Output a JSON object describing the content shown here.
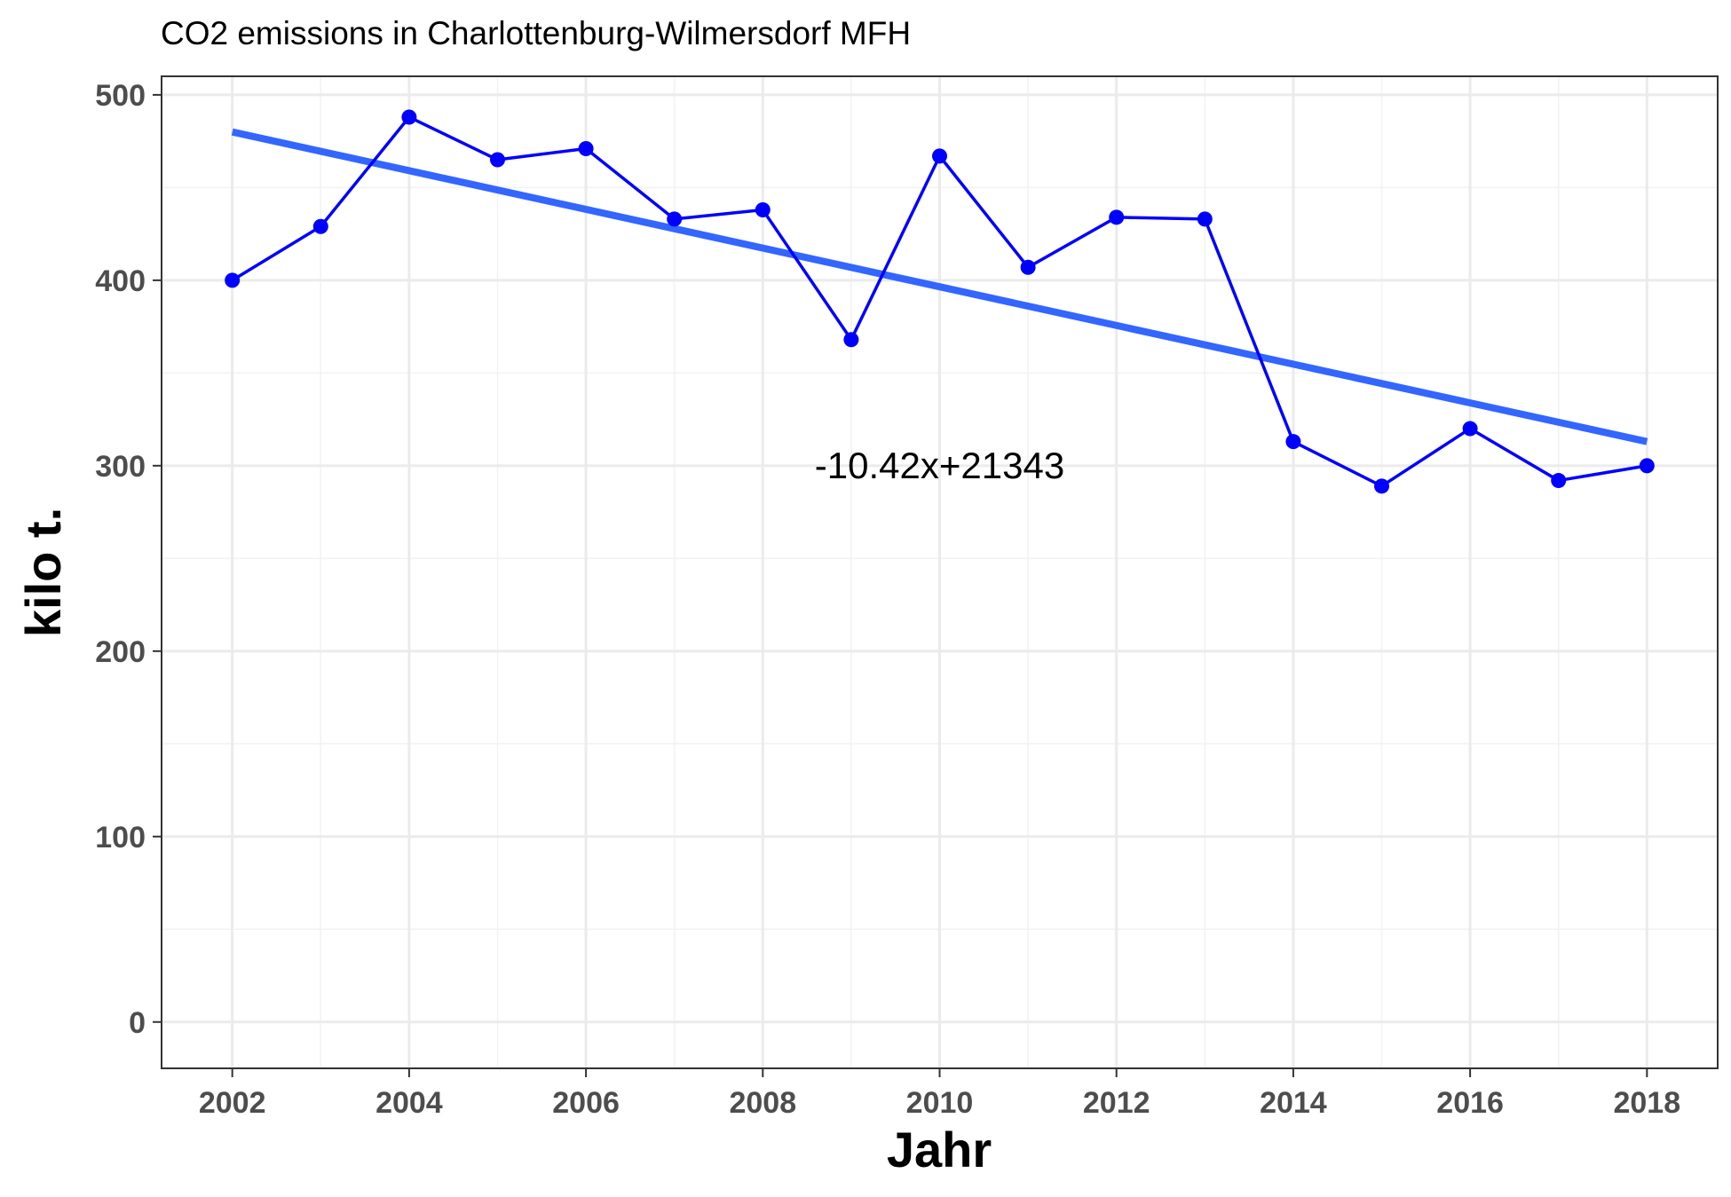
{
  "chart_data": {
    "type": "line",
    "title": "CO2 emissions in Charlottenburg-Wilmersdorf MFH",
    "xlabel": "Jahr",
    "ylabel": "kilo t.",
    "xlim": [
      2001.2,
      2018.8
    ],
    "ylim": [
      -25,
      510
    ],
    "x_ticks": [
      2002,
      2004,
      2006,
      2008,
      2010,
      2012,
      2014,
      2016,
      2018
    ],
    "x_tick_labels": [
      "2002",
      "2004",
      "2006",
      "2008",
      "2010",
      "2012",
      "2014",
      "2016",
      "2018"
    ],
    "y_ticks": [
      0,
      100,
      200,
      300,
      400,
      500
    ],
    "y_tick_labels": [
      "0",
      "100",
      "200",
      "300",
      "400",
      "500"
    ],
    "grid": true,
    "series": [
      {
        "type": "line-with-points",
        "color": "#0000ff",
        "x": [
          2002,
          2003,
          2004,
          2005,
          2006,
          2007,
          2008,
          2009,
          2010,
          2011,
          2012,
          2013,
          2014,
          2015,
          2016,
          2017,
          2018
        ],
        "y": [
          400,
          429,
          488,
          465,
          471,
          433,
          438,
          368,
          467,
          407,
          434,
          433,
          313,
          289,
          320,
          292,
          300
        ]
      },
      {
        "type": "trend-line",
        "color": "#3366ff",
        "x": [
          2002,
          2018
        ],
        "y": [
          480,
          313
        ]
      }
    ],
    "annotation": {
      "text": "-10.42x+21343",
      "x": 2010,
      "y": 300
    }
  }
}
